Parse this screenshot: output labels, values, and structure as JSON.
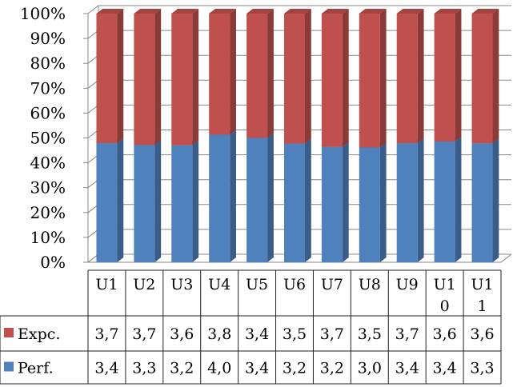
{
  "chart_data": {
    "type": "bar",
    "stacking": "percent",
    "categories": [
      "U1",
      "U2",
      "U3",
      "U4",
      "U5",
      "U6",
      "U7",
      "U8",
      "U9",
      "U10",
      "U11"
    ],
    "category_display_lines": [
      [
        "U1"
      ],
      [
        "U2"
      ],
      [
        "U3"
      ],
      [
        "U4"
      ],
      [
        "U5"
      ],
      [
        "U6"
      ],
      [
        "U7"
      ],
      [
        "U8"
      ],
      [
        "U9"
      ],
      [
        "U1",
        "0"
      ],
      [
        "U1",
        "1"
      ]
    ],
    "series": [
      {
        "name": "Perf.",
        "color": "#4f81bd",
        "values": [
          3.4,
          3.3,
          3.2,
          4.0,
          3.4,
          3.2,
          3.2,
          3.0,
          3.4,
          3.4,
          3.3
        ],
        "labels": [
          "3,4",
          "3,3",
          "3,2",
          "4,0",
          "3,4",
          "3,2",
          "3,2",
          "3,0",
          "3,4",
          "3,4",
          "3,3"
        ]
      },
      {
        "name": "Expc.",
        "color": "#c0504d",
        "values": [
          3.7,
          3.7,
          3.6,
          3.8,
          3.4,
          3.5,
          3.7,
          3.5,
          3.7,
          3.6,
          3.6
        ],
        "labels": [
          "3,7",
          "3,7",
          "3,6",
          "3,8",
          "3,4",
          "3,5",
          "3,7",
          "3,5",
          "3,7",
          "3,6",
          "3,6"
        ]
      }
    ],
    "table_row_order": [
      "Expc.",
      "Perf."
    ],
    "y_ticks": [
      "0%",
      "10%",
      "20%",
      "30%",
      "40%",
      "50%",
      "60%",
      "70%",
      "80%",
      "90%",
      "100%"
    ],
    "ylim": [
      0,
      100
    ],
    "grid": true,
    "legend_placement": "data-table"
  }
}
